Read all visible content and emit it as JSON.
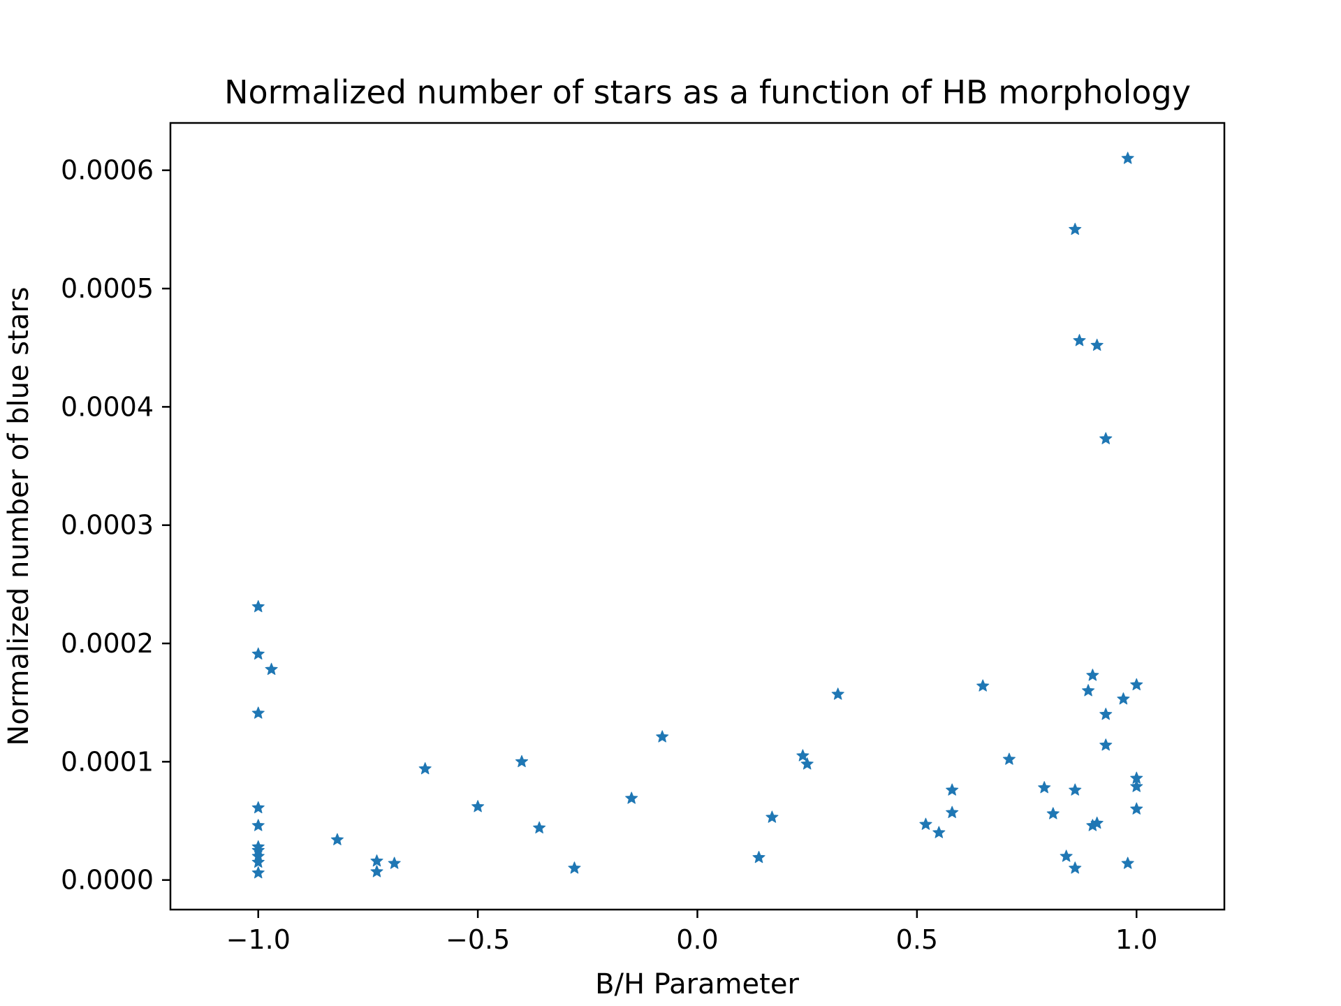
{
  "chart_data": {
    "type": "scatter",
    "title": "Normalized number of stars as a function of HB morphology",
    "xlabel": "B/H Parameter",
    "ylabel": "Normalized number of blue stars",
    "xlim": [
      -1.2,
      1.2
    ],
    "ylim": [
      -2.5e-05,
      0.00064
    ],
    "xticks": [
      -1.0,
      -0.5,
      0.0,
      0.5,
      1.0
    ],
    "xtick_labels": [
      "−1.0",
      "−0.5",
      "0.0",
      "0.5",
      "1.0"
    ],
    "yticks": [
      0.0,
      0.0001,
      0.0002,
      0.0003,
      0.0004,
      0.0005,
      0.0006
    ],
    "ytick_labels": [
      "0.0000",
      "0.0001",
      "0.0002",
      "0.0003",
      "0.0004",
      "0.0005",
      "0.0006"
    ],
    "grid": false,
    "marker": "star",
    "color": "#1f77b4",
    "series": [
      {
        "points": [
          [
            -1.0,
            0.000231
          ],
          [
            -1.0,
            0.000191
          ],
          [
            -1.0,
            0.000141
          ],
          [
            -1.0,
            6.1e-05
          ],
          [
            -1.0,
            4.6e-05
          ],
          [
            -1.0,
            2.8e-05
          ],
          [
            -1.0,
            2.5e-05
          ],
          [
            -1.0,
            2e-05
          ],
          [
            -1.0,
            1.5e-05
          ],
          [
            -1.0,
            6e-06
          ],
          [
            -0.97,
            0.000178
          ],
          [
            -0.82,
            3.4e-05
          ],
          [
            -0.73,
            1.6e-05
          ],
          [
            -0.73,
            7e-06
          ],
          [
            -0.69,
            1.4e-05
          ],
          [
            -0.62,
            9.4e-05
          ],
          [
            -0.5,
            6.2e-05
          ],
          [
            -0.4,
            0.0001
          ],
          [
            -0.36,
            4.4e-05
          ],
          [
            -0.28,
            1e-05
          ],
          [
            -0.15,
            6.9e-05
          ],
          [
            -0.08,
            0.000121
          ],
          [
            0.14,
            1.9e-05
          ],
          [
            0.17,
            5.3e-05
          ],
          [
            0.24,
            0.000105
          ],
          [
            0.25,
            9.8e-05
          ],
          [
            0.32,
            0.000157
          ],
          [
            0.52,
            4.7e-05
          ],
          [
            0.55,
            4e-05
          ],
          [
            0.58,
            7.6e-05
          ],
          [
            0.58,
            5.7e-05
          ],
          [
            0.65,
            0.000164
          ],
          [
            0.71,
            0.000102
          ],
          [
            0.79,
            7.8e-05
          ],
          [
            0.81,
            5.6e-05
          ],
          [
            0.84,
            2e-05
          ],
          [
            0.86,
            0.00055
          ],
          [
            0.86,
            7.6e-05
          ],
          [
            0.86,
            1e-05
          ],
          [
            0.87,
            0.000456
          ],
          [
            0.89,
            0.00016
          ],
          [
            0.9,
            0.000173
          ],
          [
            0.9,
            4.6e-05
          ],
          [
            0.91,
            0.000452
          ],
          [
            0.91,
            4.8e-05
          ],
          [
            0.93,
            0.000373
          ],
          [
            0.93,
            0.00014
          ],
          [
            0.93,
            0.000114
          ],
          [
            0.97,
            0.000153
          ],
          [
            0.98,
            0.00061
          ],
          [
            0.98,
            1.4e-05
          ],
          [
            1.0,
            0.000165
          ],
          [
            1.0,
            8.6e-05
          ],
          [
            1.0,
            7.9e-05
          ],
          [
            1.0,
            6e-05
          ]
        ]
      }
    ]
  }
}
